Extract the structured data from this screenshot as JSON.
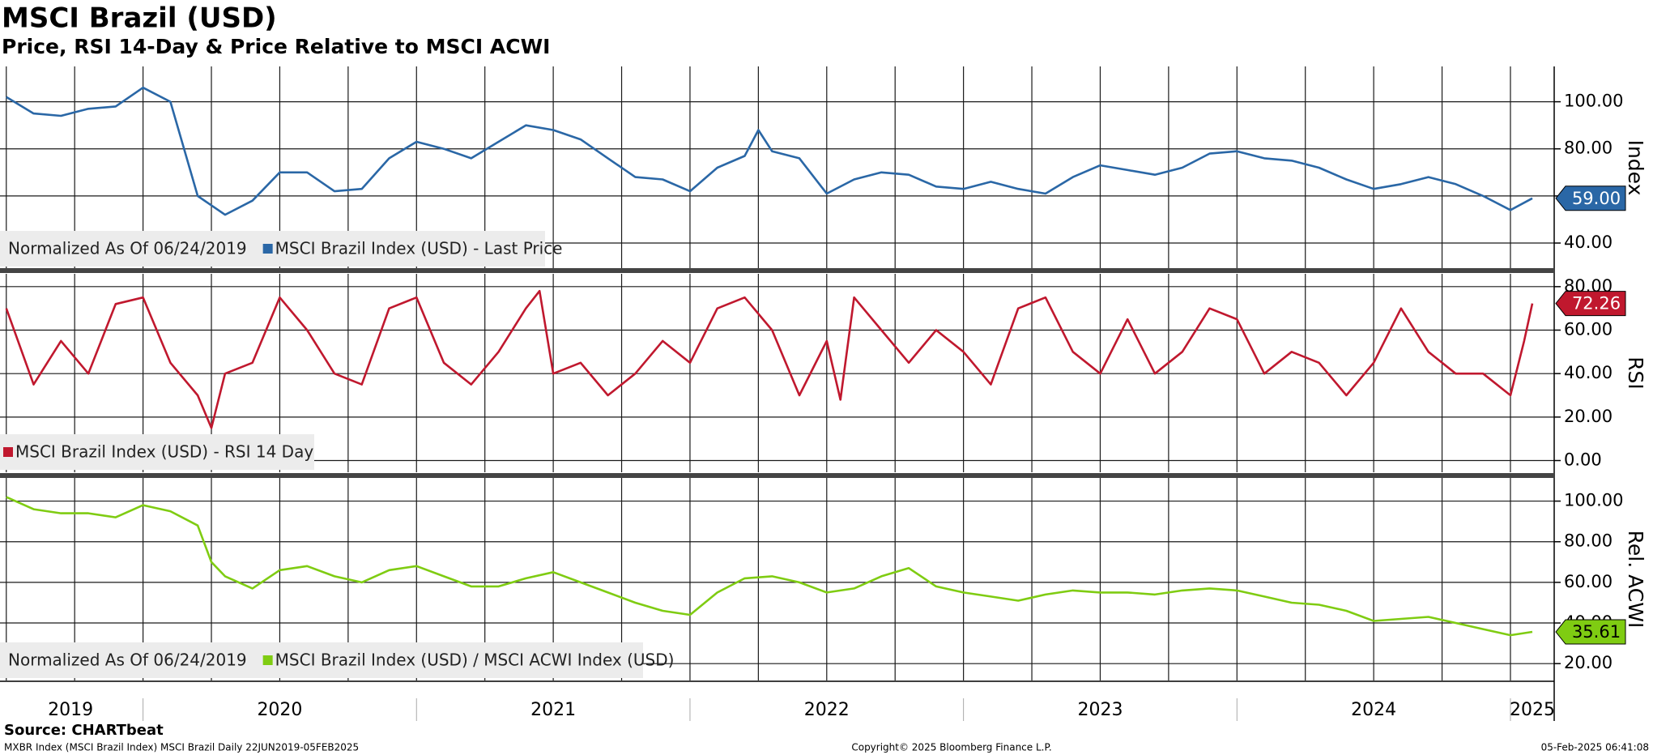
{
  "title": "MSCI Brazil (USD)",
  "subtitle": "Price, RSI 14-Day & Price Relative to MSCI ACWI",
  "source": "Source: CHARTbeat",
  "footer_left": "MXBR Index (MSCI Brazil Index) MSCI Brazil  Daily 22JUN2019-05FEB2025",
  "footer_center": "Copyright© 2025 Bloomberg Finance L.P.",
  "footer_right": "05-Feb-2025 06:41:08",
  "x_axis": {
    "xlim": [
      2019.477,
      2025.16
    ],
    "xticks": [
      {
        "value": 2019.735,
        "label": "2019"
      },
      {
        "value": 2020.5,
        "label": "2020"
      },
      {
        "value": 2021.5,
        "label": "2021"
      },
      {
        "value": 2022.5,
        "label": "2022"
      },
      {
        "value": 2023.5,
        "label": "2023"
      },
      {
        "value": 2024.5,
        "label": "2024"
      },
      {
        "value": 2025.08,
        "label": "2025"
      }
    ],
    "xgrid": [
      2019.5,
      2019.75,
      2020,
      2020.25,
      2020.5,
      2020.75,
      2021,
      2021.25,
      2021.5,
      2021.75,
      2022,
      2022.25,
      2022.5,
      2022.75,
      2023,
      2023.25,
      2023.5,
      2023.75,
      2024,
      2024.25,
      2024.5,
      2024.75,
      2025
    ]
  },
  "chart_data": [
    {
      "type": "line",
      "axis_label": "Index",
      "normalization_note": "Normalized As Of 06/24/2019",
      "ylim": [
        29,
        115
      ],
      "yticks": [
        {
          "value": 40,
          "label": "40.00"
        },
        {
          "value": 60,
          "label": "60.00"
        },
        {
          "value": 80,
          "label": "80.00"
        },
        {
          "value": 100,
          "label": "100.00"
        }
      ],
      "grid": true,
      "series": [
        {
          "name": "MSCI Brazil Index (USD) - Last Price",
          "color": "#2a67a6",
          "last_value_label": "59.00",
          "x": [
            2019.5,
            2019.6,
            2019.7,
            2019.8,
            2019.9,
            2020.0,
            2020.1,
            2020.2,
            2020.3,
            2020.4,
            2020.5,
            2020.6,
            2020.7,
            2020.8,
            2020.9,
            2021.0,
            2021.1,
            2021.2,
            2021.3,
            2021.4,
            2021.5,
            2021.6,
            2021.7,
            2021.8,
            2021.9,
            2022.0,
            2022.1,
            2022.2,
            2022.25,
            2022.3,
            2022.4,
            2022.5,
            2022.6,
            2022.7,
            2022.8,
            2022.9,
            2023.0,
            2023.1,
            2023.2,
            2023.3,
            2023.4,
            2023.5,
            2023.6,
            2023.7,
            2023.8,
            2023.9,
            2024.0,
            2024.1,
            2024.2,
            2024.3,
            2024.4,
            2024.5,
            2024.6,
            2024.7,
            2024.8,
            2024.9,
            2025.0,
            2025.08
          ],
          "values": [
            102,
            95,
            94,
            97,
            98,
            106,
            100,
            60,
            52,
            58,
            70,
            70,
            62,
            63,
            76,
            83,
            80,
            76,
            83,
            90,
            88,
            84,
            76,
            68,
            67,
            62,
            72,
            77,
            88,
            79,
            76,
            61,
            67,
            70,
            69,
            64,
            63,
            66,
            63,
            61,
            68,
            73,
            71,
            69,
            72,
            78,
            79,
            76,
            75,
            72,
            67,
            63,
            65,
            68,
            65,
            60,
            54,
            59
          ]
        }
      ]
    },
    {
      "type": "line",
      "axis_label": "RSI",
      "ylim": [
        -5.4,
        85.9
      ],
      "yticks": [
        {
          "value": 0,
          "label": "0.00"
        },
        {
          "value": 20,
          "label": "20.00"
        },
        {
          "value": 40,
          "label": "40.00"
        },
        {
          "value": 60,
          "label": "60.00"
        },
        {
          "value": 80,
          "label": "80.00"
        }
      ],
      "grid": true,
      "series": [
        {
          "name": "MSCI Brazil Index (USD) - RSI 14 Day",
          "color": "#c0182e",
          "last_value_label": "72.26",
          "x": [
            2019.5,
            2019.6,
            2019.7,
            2019.8,
            2019.9,
            2020.0,
            2020.1,
            2020.2,
            2020.25,
            2020.3,
            2020.4,
            2020.5,
            2020.6,
            2020.7,
            2020.8,
            2020.9,
            2021.0,
            2021.1,
            2021.2,
            2021.3,
            2021.4,
            2021.45,
            2021.5,
            2021.6,
            2021.7,
            2021.8,
            2021.9,
            2022.0,
            2022.1,
            2022.2,
            2022.3,
            2022.4,
            2022.5,
            2022.55,
            2022.6,
            2022.7,
            2022.8,
            2022.9,
            2023.0,
            2023.1,
            2023.2,
            2023.3,
            2023.4,
            2023.5,
            2023.6,
            2023.7,
            2023.8,
            2023.9,
            2024.0,
            2024.1,
            2024.2,
            2024.3,
            2024.4,
            2024.5,
            2024.6,
            2024.7,
            2024.8,
            2024.9,
            2025.0,
            2025.05,
            2025.08
          ],
          "values": [
            70,
            35,
            55,
            40,
            72,
            75,
            45,
            30,
            15,
            40,
            45,
            75,
            60,
            40,
            35,
            70,
            75,
            45,
            35,
            50,
            70,
            78,
            40,
            45,
            30,
            40,
            55,
            45,
            70,
            75,
            60,
            30,
            55,
            28,
            75,
            60,
            45,
            60,
            50,
            35,
            70,
            75,
            50,
            40,
            65,
            40,
            50,
            70,
            65,
            40,
            50,
            45,
            30,
            45,
            70,
            50,
            40,
            40,
            30,
            55,
            72.26
          ]
        }
      ]
    },
    {
      "type": "line",
      "axis_label": "Rel. ACWI",
      "normalization_note": "Normalized As Of 06/24/2019",
      "ylim": [
        11.7,
        111.4
      ],
      "yticks": [
        {
          "value": 20,
          "label": "20.00"
        },
        {
          "value": 40,
          "label": "40.00"
        },
        {
          "value": 60,
          "label": "60.00"
        },
        {
          "value": 80,
          "label": "80.00"
        },
        {
          "value": 100,
          "label": "100.00"
        }
      ],
      "grid": true,
      "series": [
        {
          "name": "MSCI Brazil Index (USD) / MSCI ACWI Index (USD)",
          "color": "#7fcc12",
          "last_value_label": "35.61",
          "x": [
            2019.5,
            2019.6,
            2019.7,
            2019.8,
            2019.9,
            2020.0,
            2020.1,
            2020.2,
            2020.25,
            2020.3,
            2020.4,
            2020.5,
            2020.6,
            2020.7,
            2020.8,
            2020.9,
            2021.0,
            2021.1,
            2021.2,
            2021.3,
            2021.4,
            2021.5,
            2021.6,
            2021.7,
            2021.8,
            2021.9,
            2022.0,
            2022.1,
            2022.2,
            2022.3,
            2022.4,
            2022.5,
            2022.6,
            2022.7,
            2022.8,
            2022.9,
            2023.0,
            2023.1,
            2023.2,
            2023.3,
            2023.4,
            2023.5,
            2023.6,
            2023.7,
            2023.8,
            2023.9,
            2024.0,
            2024.1,
            2024.2,
            2024.3,
            2024.4,
            2024.5,
            2024.6,
            2024.7,
            2024.8,
            2024.9,
            2025.0,
            2025.08
          ],
          "values": [
            102,
            96,
            94,
            94,
            92,
            98,
            95,
            88,
            70,
            63,
            57,
            66,
            68,
            63,
            60,
            66,
            68,
            63,
            58,
            58,
            62,
            65,
            60,
            55,
            50,
            46,
            44,
            55,
            62,
            63,
            60,
            55,
            57,
            63,
            67,
            58,
            55,
            53,
            51,
            54,
            56,
            55,
            55,
            54,
            56,
            57,
            56,
            53,
            50,
            49,
            46,
            41,
            42,
            43,
            40,
            37,
            34,
            35.61
          ]
        }
      ]
    }
  ]
}
